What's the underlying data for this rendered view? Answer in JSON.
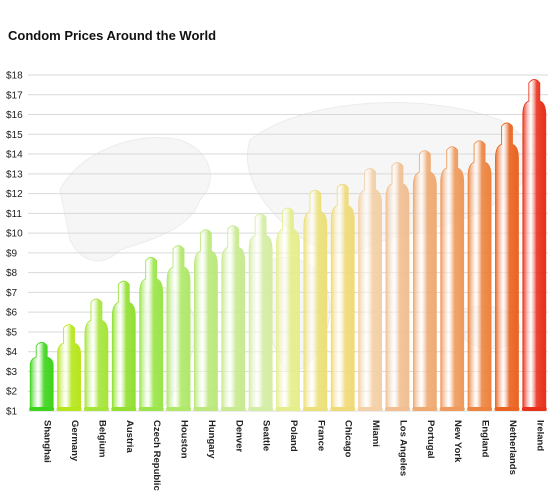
{
  "chart_data": {
    "type": "bar",
    "title": "Condom Prices Around the World",
    "xlabel": "",
    "ylabel": "",
    "ylim": [
      1,
      18
    ],
    "y_ticks": [
      "$1",
      "$2",
      "$3",
      "$4",
      "$5",
      "$6",
      "$7",
      "$8",
      "$9",
      "$10",
      "$11",
      "$12",
      "$13",
      "$14",
      "$15",
      "$16",
      "$17",
      "$18"
    ],
    "grid": true,
    "legend": "none",
    "categories": [
      "Shanghai",
      "Germany",
      "Belgium",
      "Austria",
      "Czech Republic",
      "Houston",
      "Hungary",
      "Denver",
      "Seattle",
      "Poland",
      "France",
      "Chicago",
      "Miami",
      "Los Angeles",
      "Portugal",
      "New York",
      "England",
      "Netherlands",
      "Ireland"
    ],
    "values": [
      4.5,
      5.4,
      6.7,
      7.6,
      8.8,
      9.4,
      10.2,
      10.4,
      11.0,
      11.3,
      12.2,
      12.5,
      13.3,
      13.6,
      14.2,
      14.4,
      14.7,
      15.6,
      17.8
    ],
    "colors": [
      "#3fd41c",
      "#b6e61c",
      "#a6e53a",
      "#92e032",
      "#9ae54a",
      "#b0e86a",
      "#bce87c",
      "#c8ea90",
      "#d4eda4",
      "#e5ee8c",
      "#ece07a",
      "#f0da78",
      "#f3d0a6",
      "#f1bf92",
      "#efaa72",
      "#ee9a5c",
      "#ec843f",
      "#ea6320",
      "#e8301a"
    ]
  }
}
